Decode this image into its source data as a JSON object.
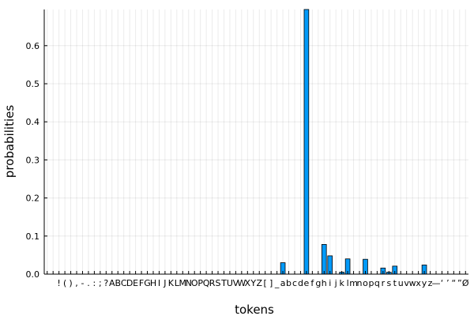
{
  "chart_data": {
    "type": "bar",
    "xlabel": "tokens",
    "ylabel": "probabilities",
    "ylim": [
      0,
      0.695
    ],
    "yticks": [
      "0.0",
      "0.1",
      "0.2",
      "0.3",
      "0.4",
      "0.5",
      "0.6"
    ],
    "grid": true,
    "legend": "none",
    "bar_color": "#009af9",
    "categories": [
      "\n",
      " ",
      "!",
      "(",
      ")",
      ",",
      "-",
      ".",
      ":",
      ";",
      "?",
      "A",
      "B",
      "C",
      "D",
      "E",
      "F",
      "G",
      "H",
      "I",
      "J",
      "K",
      "L",
      "M",
      "N",
      "O",
      "P",
      "Q",
      "R",
      "S",
      "T",
      "U",
      "V",
      "W",
      "X",
      "Y",
      "Z",
      "[",
      "]",
      "_",
      "a",
      "b",
      "c",
      "d",
      "e",
      "f",
      "g",
      "h",
      "i",
      "j",
      "k",
      "l",
      "m",
      "n",
      "o",
      "p",
      "q",
      "r",
      "s",
      "t",
      "u",
      "v",
      "w",
      "x",
      "y",
      "z",
      "—",
      "‘",
      "’",
      "“",
      "”",
      "Ø"
    ],
    "values": [
      0,
      0,
      0,
      0,
      0,
      0,
      0,
      0,
      0,
      0,
      0,
      0,
      0,
      0,
      0,
      0,
      0,
      0,
      0,
      0,
      0,
      0,
      0,
      0,
      0,
      0,
      0,
      0,
      0,
      0,
      0,
      0,
      0,
      0,
      0,
      0,
      0,
      0,
      0,
      0,
      0.03,
      0,
      0,
      0,
      0.695,
      0,
      0,
      0.078,
      0.048,
      0,
      0.005,
      0.04,
      0,
      0,
      0.039,
      0,
      0,
      0.016,
      0.005,
      0.021,
      0,
      0,
      0,
      0,
      0.024,
      0,
      0,
      0,
      0,
      0,
      0,
      0
    ]
  }
}
